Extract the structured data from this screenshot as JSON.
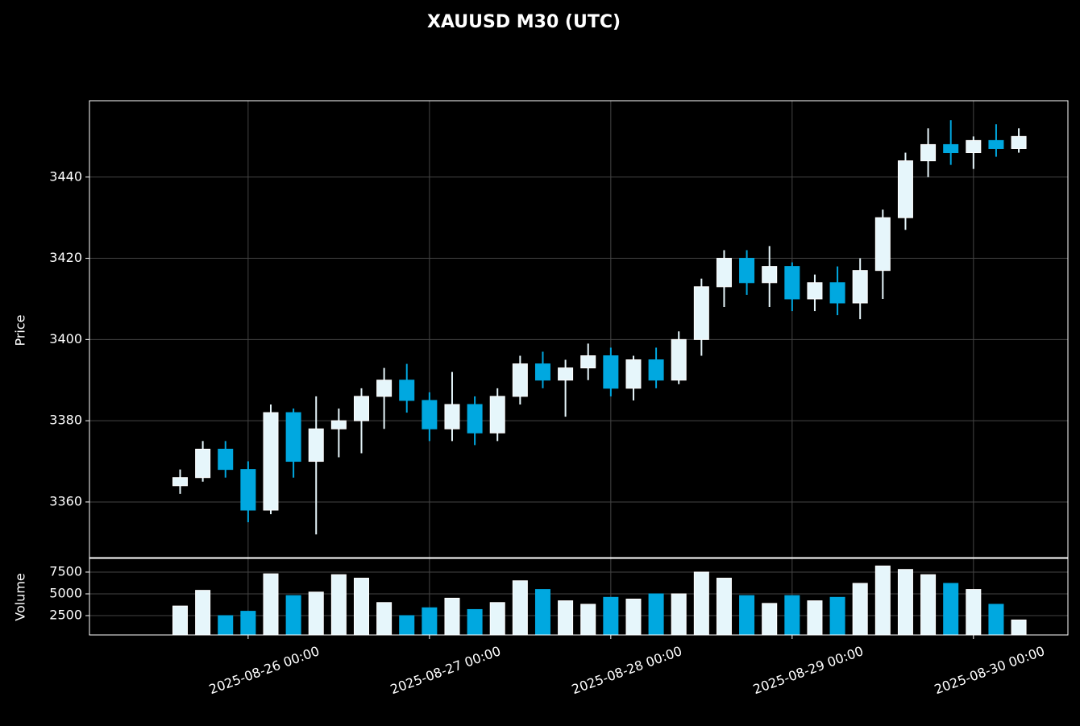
{
  "chart_data": {
    "type": "candlestick",
    "title": "XAUUSD M30 (UTC)",
    "ylabel": "Price",
    "x": [
      "2025-08-25 15:00",
      "2025-08-25 18:00",
      "2025-08-25 21:00",
      "2025-08-26 00:00",
      "2025-08-26 03:00",
      "2025-08-26 06:00",
      "2025-08-26 09:00",
      "2025-08-26 12:00",
      "2025-08-26 15:00",
      "2025-08-26 18:00",
      "2025-08-26 21:00",
      "2025-08-27 00:00",
      "2025-08-27 03:00",
      "2025-08-27 06:00",
      "2025-08-27 09:00",
      "2025-08-27 12:00",
      "2025-08-27 15:00",
      "2025-08-27 18:00",
      "2025-08-27 21:00",
      "2025-08-28 00:00",
      "2025-08-28 03:00",
      "2025-08-28 06:00",
      "2025-08-28 09:00",
      "2025-08-28 12:00",
      "2025-08-28 15:00",
      "2025-08-28 18:00",
      "2025-08-28 21:00",
      "2025-08-29 00:00",
      "2025-08-29 03:00",
      "2025-08-29 06:00",
      "2025-08-29 09:00",
      "2025-08-29 12:00",
      "2025-08-29 15:00",
      "2025-08-29 18:00",
      "2025-08-29 21:00",
      "2025-08-30 00:00",
      "2025-08-30 03:00",
      "2025-08-30 06:00"
    ],
    "open": [
      3364,
      3366,
      3373,
      3368,
      3358,
      3382,
      3370,
      3378,
      3380,
      3386,
      3390,
      3385,
      3378,
      3384,
      3377,
      3386,
      3394,
      3390,
      3393,
      3396,
      3388,
      3395,
      3390,
      3400,
      3413,
      3420,
      3414,
      3418,
      3410,
      3414,
      3409,
      3417,
      3430,
      3444,
      3448,
      3446,
      3449,
      3447
    ],
    "high": [
      3368,
      3375,
      3375,
      3370,
      3384,
      3383,
      3386,
      3383,
      3388,
      3393,
      3394,
      3387,
      3392,
      3386,
      3388,
      3396,
      3397,
      3395,
      3399,
      3398,
      3396,
      3398,
      3402,
      3415,
      3422,
      3422,
      3423,
      3419,
      3416,
      3418,
      3420,
      3432,
      3446,
      3452,
      3454,
      3450,
      3453,
      3452
    ],
    "low": [
      3362,
      3365,
      3366,
      3355,
      3357,
      3366,
      3352,
      3371,
      3372,
      3378,
      3382,
      3375,
      3375,
      3374,
      3375,
      3384,
      3388,
      3381,
      3390,
      3386,
      3385,
      3388,
      3389,
      3396,
      3408,
      3411,
      3408,
      3407,
      3407,
      3406,
      3405,
      3410,
      3427,
      3440,
      3443,
      3442,
      3445,
      3446
    ],
    "close": [
      3366,
      3373,
      3368,
      3358,
      3382,
      3370,
      3378,
      3380,
      3386,
      3390,
      3385,
      3378,
      3384,
      3377,
      3386,
      3394,
      3390,
      3393,
      3396,
      3388,
      3395,
      3390,
      3400,
      3413,
      3420,
      3414,
      3418,
      3410,
      3414,
      3409,
      3417,
      3430,
      3444,
      3448,
      3446,
      3449,
      3447,
      3450
    ],
    "up_color": "#e6f6fb",
    "down_color": "#00a8e0",
    "xlim": [
      "2025-08-25 03:00",
      "2025-08-30 12:30"
    ],
    "xticks": [
      "2025-08-26 00:00",
      "2025-08-27 00:00",
      "2025-08-28 00:00",
      "2025-08-29 00:00",
      "2025-08-30 00:00"
    ],
    "ylim": [
      3346.3,
      3458.8
    ],
    "yticks": [
      3360,
      3380,
      3400,
      3420,
      3440
    ],
    "grid": true,
    "volume": {
      "label": "Volume",
      "values": [
        3600,
        5400,
        2500,
        3000,
        7300,
        4800,
        5200,
        7200,
        6800,
        4000,
        2500,
        3400,
        4500,
        3200,
        4000,
        6500,
        5500,
        4200,
        3800,
        4600,
        4400,
        5000,
        5000,
        7500,
        6800,
        4800,
        3900,
        4800,
        4200,
        4600,
        6200,
        8200,
        7800,
        7200,
        6200,
        5500,
        3800,
        2000
      ],
      "ylim": [
        280,
        9070
      ],
      "yticks": [
        2500,
        5000,
        7500
      ]
    }
  }
}
